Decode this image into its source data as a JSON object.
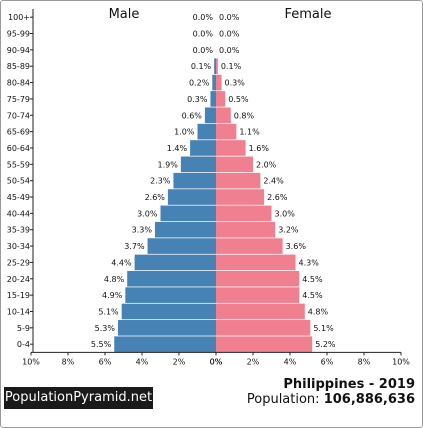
{
  "chart_data": {
    "type": "bar",
    "orientation": "horizontal-pyramid",
    "left_header": "Male",
    "right_header": "Female",
    "age_groups": [
      "100+",
      "95-99",
      "90-94",
      "85-89",
      "80-84",
      "75-79",
      "70-74",
      "65-69",
      "60-64",
      "55-59",
      "50-54",
      "45-49",
      "40-44",
      "35-39",
      "30-34",
      "25-29",
      "20-24",
      "15-19",
      "10-14",
      "5-9",
      "0-4"
    ],
    "series": [
      {
        "name": "Male",
        "color": "#4682b4",
        "values": [
          0.0,
          0.0,
          0.0,
          0.1,
          0.2,
          0.3,
          0.6,
          1.0,
          1.4,
          1.9,
          2.3,
          2.6,
          3.0,
          3.3,
          3.7,
          4.4,
          4.8,
          4.9,
          5.1,
          5.3,
          5.5
        ],
        "labels": [
          "0.0%",
          "0.0%",
          "0.0%",
          "0.1%",
          "0.2%",
          "0.3%",
          "0.6%",
          "1.0%",
          "1.4%",
          "1.9%",
          "2.3%",
          "2.6%",
          "3.0%",
          "3.3%",
          "3.7%",
          "4.4%",
          "4.8%",
          "4.9%",
          "5.1%",
          "5.3%",
          "5.5%"
        ]
      },
      {
        "name": "Female",
        "color": "#f08090",
        "values": [
          0.0,
          0.0,
          0.0,
          0.1,
          0.3,
          0.5,
          0.8,
          1.1,
          1.6,
          2.0,
          2.4,
          2.6,
          3.0,
          3.2,
          3.6,
          4.3,
          4.5,
          4.5,
          4.8,
          5.1,
          5.2
        ],
        "labels": [
          "0.0%",
          "0.0%",
          "0.0%",
          "0.1%",
          "0.3%",
          "0.5%",
          "0.8%",
          "1.1%",
          "1.6%",
          "2.0%",
          "2.4%",
          "2.6%",
          "3.0%",
          "3.2%",
          "3.6%",
          "4.3%",
          "4.5%",
          "4.5%",
          "4.8%",
          "5.1%",
          "5.2%"
        ]
      }
    ],
    "xlim": [
      0,
      10
    ],
    "x_ticks_left": [
      "10%",
      "8%",
      "6%",
      "4%",
      "2%",
      "0%"
    ],
    "x_ticks_right": [
      "0%",
      "2%",
      "4%",
      "6%",
      "8%",
      "10%"
    ]
  },
  "footer": {
    "brand": "PopulationPyramid.net",
    "title": "Philippines - 2019",
    "population_label": "Population:",
    "population_value": "106,886,636"
  }
}
